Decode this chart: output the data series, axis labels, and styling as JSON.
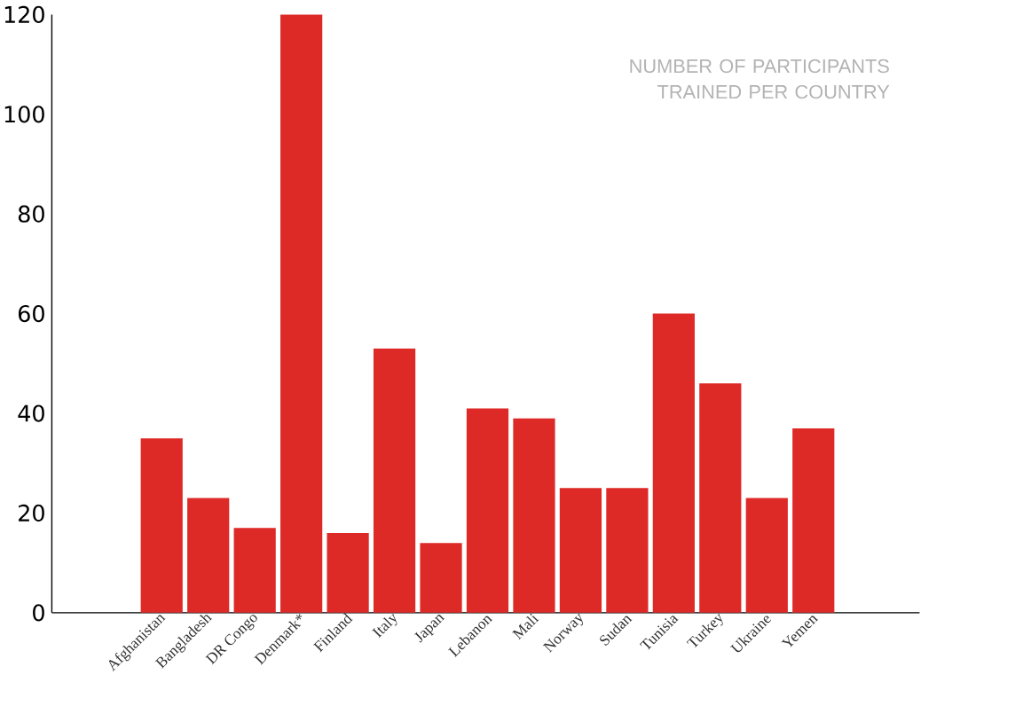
{
  "chart_data": {
    "type": "bar",
    "title": "NUMBER OF PARTICIPANTS TRAINED PER COUNTRY",
    "categories": [
      "Afghanistan",
      "Bangladesh",
      "DR Congo",
      "Denmark*",
      "Finland",
      "Italy",
      "Japan",
      "Lebanon",
      "Mali",
      "Norway",
      "Sudan",
      "Tunisia",
      "Turkey",
      "Ukraine",
      "Yemen"
    ],
    "values": [
      35,
      23,
      17,
      120,
      16,
      53,
      14,
      41,
      39,
      25,
      25,
      60,
      46,
      23,
      37
    ],
    "color": "#dd2a27",
    "ylim": [
      0,
      120
    ],
    "yticks": [
      0,
      20,
      40,
      60,
      80,
      100,
      120
    ]
  }
}
